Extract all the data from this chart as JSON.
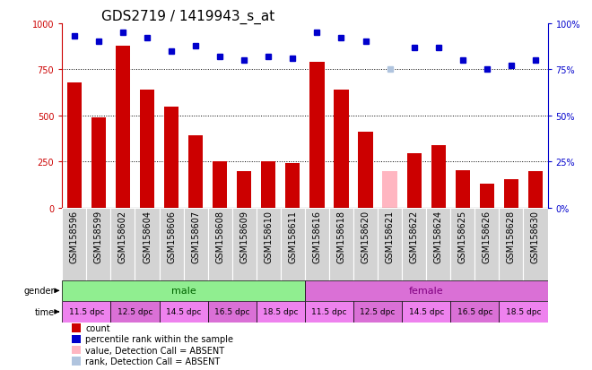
{
  "title": "GDS2719 / 1419943_s_at",
  "samples": [
    "GSM158596",
    "GSM158599",
    "GSM158602",
    "GSM158604",
    "GSM158606",
    "GSM158607",
    "GSM158608",
    "GSM158609",
    "GSM158610",
    "GSM158611",
    "GSM158616",
    "GSM158618",
    "GSM158620",
    "GSM158621",
    "GSM158622",
    "GSM158624",
    "GSM158625",
    "GSM158626",
    "GSM158628",
    "GSM158630"
  ],
  "bar_values": [
    680,
    490,
    880,
    640,
    550,
    390,
    250,
    200,
    250,
    240,
    790,
    640,
    410,
    200,
    295,
    340,
    205,
    130,
    155,
    200
  ],
  "bar_absent": [
    false,
    false,
    false,
    false,
    false,
    false,
    false,
    false,
    false,
    false,
    false,
    false,
    false,
    true,
    false,
    false,
    false,
    false,
    false,
    false
  ],
  "rank_values": [
    93,
    90,
    95,
    92,
    85,
    88,
    82,
    80,
    82,
    81,
    95,
    92,
    90,
    75,
    87,
    87,
    80,
    75,
    77,
    80
  ],
  "rank_absent": [
    false,
    false,
    false,
    false,
    false,
    false,
    false,
    false,
    false,
    false,
    false,
    false,
    false,
    true,
    false,
    false,
    false,
    false,
    false,
    false
  ],
  "bar_color": "#cc0000",
  "bar_absent_color": "#ffb6c1",
  "rank_color": "#0000cc",
  "rank_absent_color": "#b0c4de",
  "ylim_left": [
    0,
    1000
  ],
  "ylim_right": [
    0,
    100
  ],
  "yticks_left": [
    0,
    250,
    500,
    750,
    1000
  ],
  "yticks_right": [
    0,
    25,
    50,
    75,
    100
  ],
  "ytick_labels_left": [
    "0",
    "250",
    "500",
    "750",
    "1000"
  ],
  "ytick_labels_right": [
    "0%",
    "25%",
    "50%",
    "75%",
    "100%"
  ],
  "gender_male_label": "male",
  "gender_female_label": "female",
  "gender_male_color": "#90ee90",
  "gender_female_color": "#da70d6",
  "time_colors": [
    "#ee82ee",
    "#da70d6",
    "#ee82ee",
    "#da70d6",
    "#ee82ee",
    "#ee82ee",
    "#da70d6",
    "#ee82ee",
    "#da70d6",
    "#ee82ee"
  ],
  "time_labels": [
    "11.5 dpc",
    "12.5 dpc",
    "14.5 dpc",
    "16.5 dpc",
    "18.5 dpc",
    "11.5 dpc",
    "12.5 dpc",
    "14.5 dpc",
    "16.5 dpc",
    "18.5 dpc"
  ],
  "legend_items": [
    {
      "label": "count",
      "color": "#cc0000"
    },
    {
      "label": "percentile rank within the sample",
      "color": "#0000cc"
    },
    {
      "label": "value, Detection Call = ABSENT",
      "color": "#ffb6c1"
    },
    {
      "label": "rank, Detection Call = ABSENT",
      "color": "#b0c4de"
    }
  ],
  "xticklabel_bg": "#d3d3d3",
  "background_color": "#ffffff",
  "grid_color": "#000000",
  "title_fontsize": 11,
  "tick_fontsize": 7,
  "label_fontsize": 7
}
